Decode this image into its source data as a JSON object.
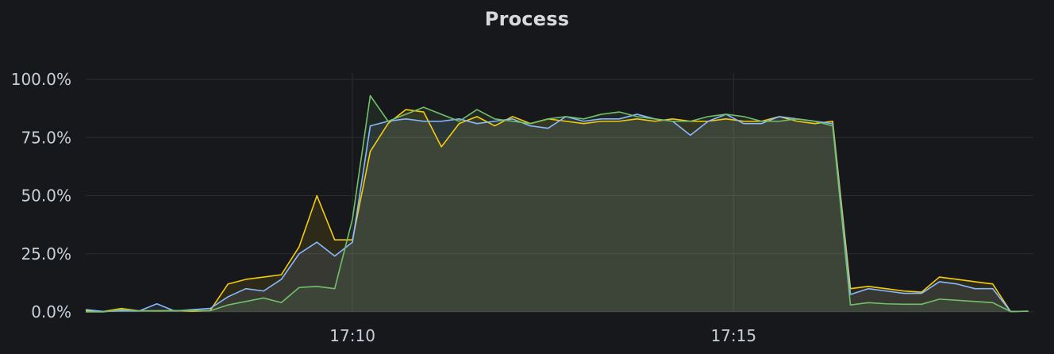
{
  "panel": {
    "title": "Process"
  },
  "colors": {
    "background": "#17181c",
    "grid": "#2c2d33",
    "text": "#c7d0d9",
    "yellow": "#f2cc0c",
    "blue": "#8ab8ff",
    "green": "#73bf69"
  },
  "chart_data": {
    "type": "area",
    "title": "Process",
    "xlabel": "",
    "ylabel": "",
    "x_range": [
      "17:06:30",
      "17:18:56"
    ],
    "x_ticks": [
      "17:10",
      "17:15"
    ],
    "y_ticks": [
      "0.0%",
      "25.0%",
      "50.0%",
      "75.0%",
      "100.0%"
    ],
    "ylim": [
      0,
      100
    ],
    "grid": true,
    "legend": "none",
    "x": [
      "17:06:30",
      "17:06:44",
      "17:06:58",
      "17:07:12",
      "17:07:26",
      "17:07:40",
      "17:07:54",
      "17:08:08",
      "17:08:22",
      "17:08:36",
      "17:08:50",
      "17:09:04",
      "17:09:18",
      "17:09:32",
      "17:09:46",
      "17:10:00",
      "17:10:14",
      "17:10:28",
      "17:10:42",
      "17:10:56",
      "17:11:10",
      "17:11:24",
      "17:11:38",
      "17:11:52",
      "17:12:06",
      "17:12:20",
      "17:12:34",
      "17:12:48",
      "17:13:02",
      "17:13:16",
      "17:13:30",
      "17:13:44",
      "17:13:58",
      "17:14:12",
      "17:14:26",
      "17:14:40",
      "17:14:54",
      "17:15:08",
      "17:15:22",
      "17:15:36",
      "17:15:50",
      "17:16:04",
      "17:16:18",
      "17:16:32",
      "17:16:46",
      "17:17:00",
      "17:17:14",
      "17:17:28",
      "17:17:42",
      "17:17:56",
      "17:18:10",
      "17:18:24",
      "17:18:38",
      "17:18:52"
    ],
    "series": [
      {
        "color": "#f2cc0c",
        "values": [
          0.5,
          0.2,
          1.5,
          0.5,
          0.5,
          0.6,
          0.3,
          0.6,
          12,
          14,
          15,
          16,
          28,
          50,
          31,
          31,
          69,
          81,
          87,
          86,
          71,
          81,
          84,
          80,
          84,
          81,
          83,
          82,
          81,
          82,
          82,
          83,
          82,
          83,
          82,
          82,
          83,
          82,
          82,
          84,
          82,
          81,
          82,
          10,
          11,
          10,
          9,
          8.5,
          15,
          14,
          13,
          12,
          0.2,
          0.3
        ]
      },
      {
        "color": "#8ab8ff",
        "values": [
          1,
          0.2,
          0.5,
          0.4,
          3.5,
          0.4,
          1,
          1.5,
          6.5,
          10,
          9,
          14,
          25,
          30,
          24,
          30,
          80,
          82,
          83,
          82,
          82,
          83,
          81,
          82,
          83,
          80,
          79,
          84,
          82,
          83,
          83,
          85,
          83,
          82,
          76,
          82,
          85,
          81,
          81,
          84,
          83,
          82,
          81,
          7.5,
          10,
          9,
          8,
          8,
          13,
          12,
          10,
          10,
          0.2,
          0.3
        ]
      },
      {
        "color": "#73bf69",
        "values": [
          0,
          0,
          1,
          0.5,
          0.4,
          0.5,
          0.7,
          0.5,
          3,
          4.5,
          6,
          4,
          10.5,
          11,
          10,
          40,
          93,
          82,
          85,
          88,
          85,
          82,
          87,
          83,
          82,
          81,
          83,
          84,
          83,
          85,
          86,
          84,
          83,
          82,
          82,
          84,
          85,
          84,
          82,
          82,
          83,
          82,
          80,
          3,
          4,
          3.5,
          3.3,
          3.3,
          5.5,
          5,
          4.5,
          4,
          0.2,
          0.3
        ]
      }
    ]
  }
}
